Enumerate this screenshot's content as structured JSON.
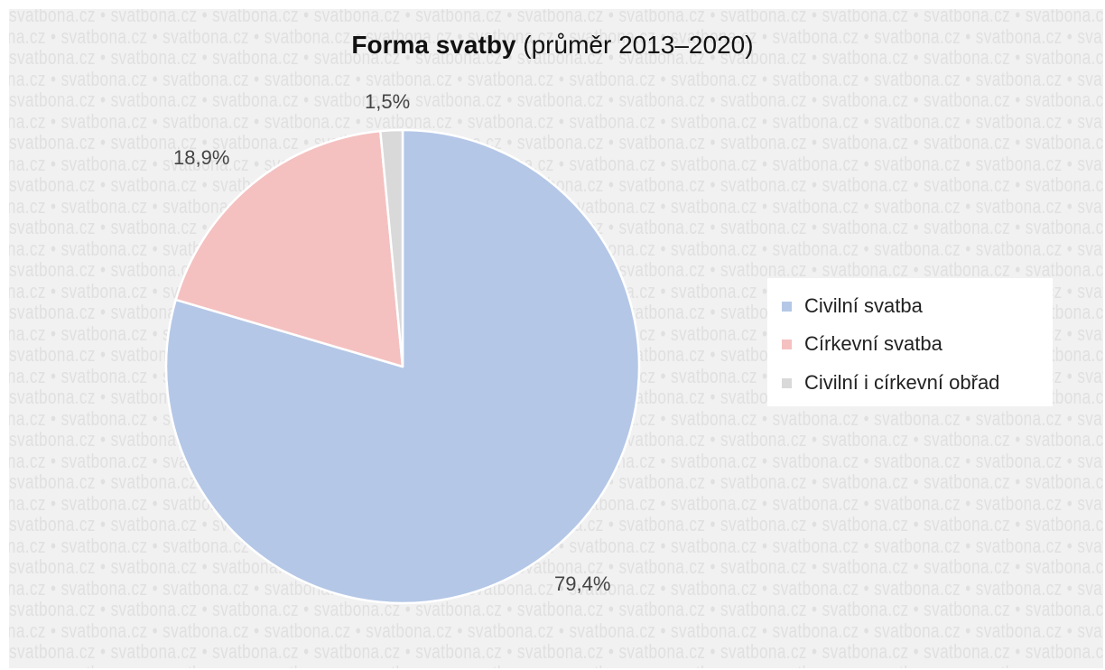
{
  "chart_data": {
    "type": "pie",
    "title_bold": "Forma svatby",
    "title_rest": "(průměr 2013–2020)",
    "categories": [
      "Civilní svatba",
      "Církevní svatba",
      "Civilní i církevní obřad"
    ],
    "values": [
      79.4,
      18.9,
      1.5
    ],
    "data_labels": [
      "79,4%",
      "18,9%",
      "1,5%"
    ],
    "colors": [
      "#b4c7e7",
      "#f4c1c0",
      "#d9d9d9"
    ],
    "legend_position": "right",
    "start": "12 o'clock",
    "direction": "clockwise"
  },
  "watermark": {
    "text": "svatbona.cz"
  }
}
